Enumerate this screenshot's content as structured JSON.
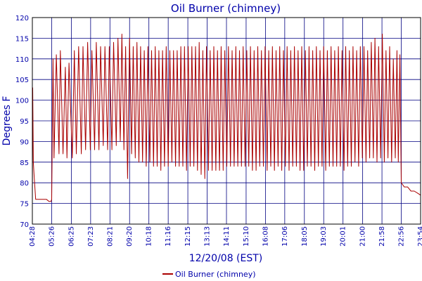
{
  "chart_data": {
    "type": "line",
    "title": "Oil Burner (chimney)",
    "xlabel": "12/20/08 (EST)",
    "ylabel": "Degrees F",
    "ylim": [
      70,
      120
    ],
    "y_ticks": [
      70,
      75,
      80,
      85,
      90,
      95,
      100,
      105,
      110,
      115,
      120
    ],
    "x_ticks": [
      "04:28",
      "05:26",
      "06:25",
      "07:23",
      "08:21",
      "09:20",
      "10:18",
      "11:16",
      "12:15",
      "13:13",
      "14:11",
      "15:10",
      "16:08",
      "17:06",
      "18:05",
      "19:03",
      "20:01",
      "21:00",
      "21:58",
      "22:56",
      "23:54"
    ],
    "grid": true,
    "legend": "bottom",
    "colors": {
      "series": "#aa0000",
      "text": "#0000aa",
      "grid": "#000080"
    },
    "series": [
      {
        "name": "Oil Burner (chimney)",
        "x": [
          "04:28",
          "04:29",
          "04:31",
          "04:33",
          "04:38",
          "04:46",
          "04:55",
          "05:05",
          "05:10",
          "05:18",
          "05:24",
          "05:26",
          "05:30",
          "05:33",
          "05:40",
          "05:48",
          "05:52",
          "06:00",
          "06:07",
          "06:12",
          "06:18",
          "06:28",
          "06:34",
          "06:40",
          "06:47",
          "06:55",
          "07:00",
          "07:08",
          "07:14",
          "07:22",
          "07:27",
          "07:35",
          "07:40",
          "07:48",
          "07:53",
          "08:01",
          "08:06",
          "08:14",
          "08:19",
          "08:27",
          "08:32",
          "08:40",
          "08:45",
          "08:52",
          "08:57",
          "09:03",
          "09:08",
          "09:14",
          "09:20",
          "09:26",
          "09:31",
          "09:37",
          "09:42",
          "09:48",
          "09:53",
          "09:59",
          "10:04",
          "10:10",
          "10:15",
          "10:21",
          "10:26",
          "10:32",
          "10:37",
          "10:43",
          "10:48",
          "10:54",
          "10:59",
          "11:05",
          "11:10",
          "11:16",
          "11:21",
          "11:27",
          "11:32",
          "11:38",
          "11:43",
          "11:49",
          "11:54",
          "12:00",
          "12:05",
          "12:11",
          "12:16",
          "12:22",
          "12:27",
          "12:33",
          "12:38",
          "12:44",
          "12:49",
          "12:55",
          "13:00",
          "13:06",
          "13:11",
          "13:17",
          "13:22",
          "13:28",
          "13:33",
          "13:39",
          "13:44",
          "13:50",
          "13:55",
          "14:01",
          "14:06",
          "14:12",
          "14:17",
          "14:23",
          "14:28",
          "14:34",
          "14:39",
          "14:45",
          "14:50",
          "14:56",
          "15:01",
          "15:07",
          "15:12",
          "15:18",
          "15:23",
          "15:29",
          "15:34",
          "15:40",
          "15:45",
          "15:51",
          "15:56",
          "16:02",
          "16:07",
          "16:13",
          "16:18",
          "16:24",
          "16:29",
          "16:35",
          "16:40",
          "16:46",
          "16:51",
          "16:57",
          "17:02",
          "17:08",
          "17:13",
          "17:19",
          "17:24",
          "17:30",
          "17:35",
          "17:41",
          "17:46",
          "17:52",
          "17:57",
          "18:03",
          "18:08",
          "18:14",
          "18:19",
          "18:25",
          "18:30",
          "18:36",
          "18:41",
          "18:47",
          "18:52",
          "18:58",
          "19:03",
          "19:09",
          "19:14",
          "19:20",
          "19:25",
          "19:31",
          "19:36",
          "19:42",
          "19:47",
          "19:53",
          "19:58",
          "20:04",
          "20:09",
          "20:15",
          "20:20",
          "20:26",
          "20:31",
          "20:37",
          "20:42",
          "20:48",
          "20:53",
          "20:59",
          "21:04",
          "21:10",
          "21:15",
          "21:21",
          "21:26",
          "21:32",
          "21:37",
          "21:43",
          "21:48",
          "21:54",
          "21:59",
          "22:05",
          "22:10",
          "22:16",
          "22:21",
          "22:27",
          "22:32",
          "22:38",
          "22:43",
          "22:47",
          "22:52",
          "22:56",
          "23:05",
          "23:15",
          "23:25",
          "23:35",
          "23:45",
          "23:54"
        ],
        "values": [
          76,
          103,
          85,
          82,
          76,
          76,
          76,
          76,
          76,
          75.5,
          75.5,
          76,
          110,
          86,
          111,
          87,
          112,
          87,
          108,
          86,
          109,
          86,
          112,
          87,
          113,
          87,
          113,
          88,
          114,
          88,
          112,
          88,
          114,
          88,
          113,
          89,
          113,
          88,
          113,
          88,
          114,
          89,
          115,
          90,
          116,
          88,
          113,
          81,
          115,
          87,
          113,
          86,
          114,
          85,
          113,
          85,
          112,
          84,
          113,
          85,
          112,
          84,
          113,
          84,
          112,
          83,
          112,
          84,
          113,
          84,
          112,
          85,
          112,
          84,
          112,
          84,
          113,
          84,
          113,
          83,
          113,
          84,
          113,
          84,
          113,
          83,
          114,
          82,
          112,
          81,
          113,
          83,
          112,
          83,
          113,
          83,
          112,
          83,
          113,
          83,
          112,
          84,
          113,
          84,
          112,
          84,
          113,
          84,
          112,
          84,
          113,
          84,
          112,
          84,
          113,
          83,
          112,
          83,
          113,
          84,
          112,
          84,
          113,
          83,
          112,
          84,
          113,
          83,
          112,
          84,
          113,
          83,
          112,
          84,
          113,
          83,
          112,
          84,
          113,
          84,
          112,
          83,
          113,
          83,
          112,
          84,
          113,
          84,
          112,
          83,
          113,
          84,
          112,
          84,
          113,
          83,
          112,
          84,
          113,
          84,
          112,
          84,
          113,
          84,
          112,
          83,
          113,
          84,
          112,
          84,
          113,
          85,
          112,
          84,
          113,
          86,
          113,
          85,
          112,
          86,
          114,
          86,
          115,
          85,
          113,
          86,
          116,
          85,
          112,
          86,
          113,
          85,
          110,
          86,
          112,
          85,
          111,
          80,
          79,
          79,
          78,
          78,
          77.5,
          77
        ]
      }
    ]
  }
}
